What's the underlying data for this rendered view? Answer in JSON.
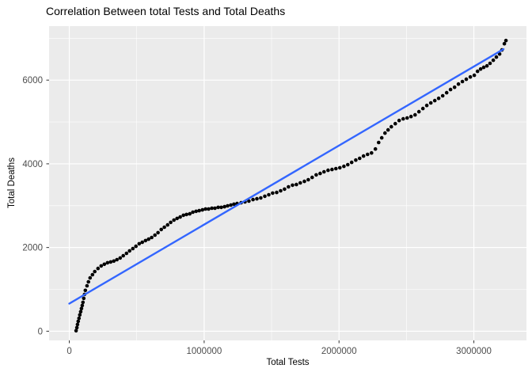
{
  "chart_data": {
    "type": "scatter",
    "title": "Correlation Between total Tests and Total Deaths",
    "xlabel": "Total Tests",
    "ylabel": "Total Deaths",
    "legend_position": "none",
    "grid": true,
    "x_ticks": [
      0,
      1000000,
      2000000,
      3000000
    ],
    "x_tick_labels": [
      "0",
      "1000000",
      "2000000",
      "3000000"
    ],
    "x_minor_ticks": [
      500000,
      1500000,
      2500000
    ],
    "y_ticks": [
      0,
      2000,
      4000,
      6000
    ],
    "y_tick_labels": [
      "0",
      "2000",
      "4000",
      "6000"
    ],
    "y_minor_ticks": [
      1000,
      3000,
      5000,
      7000
    ],
    "xlim": [
      -150000,
      3390000
    ],
    "ylim": [
      -220,
      7290
    ],
    "trend_line": {
      "type": "linear",
      "x1": 0,
      "y1": 660,
      "x2": 3220000,
      "y2": 6740
    },
    "colors": {
      "panel_background": "#EBEBEB",
      "gridline": "#FFFFFF",
      "point": "#000000",
      "trend": "#3366FF",
      "tick_text": "#4D4D4D",
      "tick_mark": "#333333",
      "title_text": "#000000",
      "axis_title_text": "#000000"
    },
    "points": [
      [
        50000,
        10
      ],
      [
        56000,
        85
      ],
      [
        61000,
        160
      ],
      [
        66000,
        235
      ],
      [
        72000,
        310
      ],
      [
        78000,
        390
      ],
      [
        84000,
        465
      ],
      [
        90000,
        540
      ],
      [
        96000,
        615
      ],
      [
        101000,
        690
      ],
      [
        107000,
        785
      ],
      [
        113000,
        880
      ],
      [
        119000,
        975
      ],
      [
        131000,
        1085
      ],
      [
        142000,
        1180
      ],
      [
        154000,
        1275
      ],
      [
        172000,
        1350
      ],
      [
        189000,
        1425
      ],
      [
        213000,
        1500
      ],
      [
        236000,
        1560
      ],
      [
        260000,
        1600
      ],
      [
        283000,
        1635
      ],
      [
        307000,
        1655
      ],
      [
        330000,
        1675
      ],
      [
        353000,
        1710
      ],
      [
        377000,
        1750
      ],
      [
        400000,
        1805
      ],
      [
        424000,
        1860
      ],
      [
        447000,
        1920
      ],
      [
        471000,
        1975
      ],
      [
        494000,
        2030
      ],
      [
        518000,
        2090
      ],
      [
        541000,
        2125
      ],
      [
        565000,
        2165
      ],
      [
        588000,
        2200
      ],
      [
        611000,
        2240
      ],
      [
        635000,
        2295
      ],
      [
        658000,
        2355
      ],
      [
        682000,
        2430
      ],
      [
        705000,
        2485
      ],
      [
        729000,
        2540
      ],
      [
        752000,
        2600
      ],
      [
        776000,
        2655
      ],
      [
        799000,
        2695
      ],
      [
        822000,
        2730
      ],
      [
        846000,
        2770
      ],
      [
        869000,
        2790
      ],
      [
        893000,
        2805
      ],
      [
        916000,
        2845
      ],
      [
        940000,
        2865
      ],
      [
        963000,
        2880
      ],
      [
        987000,
        2900
      ],
      [
        1010000,
        2920
      ],
      [
        1033000,
        2920
      ],
      [
        1057000,
        2940
      ],
      [
        1080000,
        2940
      ],
      [
        1104000,
        2960
      ],
      [
        1127000,
        2960
      ],
      [
        1151000,
        2975
      ],
      [
        1174000,
        2995
      ],
      [
        1198000,
        3015
      ],
      [
        1221000,
        3035
      ],
      [
        1244000,
        3050
      ],
      [
        1274000,
        3070
      ],
      [
        1303000,
        3090
      ],
      [
        1332000,
        3110
      ],
      [
        1362000,
        3145
      ],
      [
        1391000,
        3165
      ],
      [
        1420000,
        3185
      ],
      [
        1450000,
        3225
      ],
      [
        1479000,
        3260
      ],
      [
        1508000,
        3300
      ],
      [
        1538000,
        3315
      ],
      [
        1567000,
        3355
      ],
      [
        1596000,
        3395
      ],
      [
        1625000,
        3450
      ],
      [
        1655000,
        3490
      ],
      [
        1684000,
        3505
      ],
      [
        1713000,
        3545
      ],
      [
        1743000,
        3580
      ],
      [
        1772000,
        3620
      ],
      [
        1801000,
        3675
      ],
      [
        1831000,
        3735
      ],
      [
        1860000,
        3770
      ],
      [
        1889000,
        3810
      ],
      [
        1919000,
        3845
      ],
      [
        1948000,
        3865
      ],
      [
        1977000,
        3885
      ],
      [
        2006000,
        3905
      ],
      [
        2036000,
        3940
      ],
      [
        2065000,
        3980
      ],
      [
        2094000,
        4035
      ],
      [
        2124000,
        4090
      ],
      [
        2153000,
        4130
      ],
      [
        2182000,
        4185
      ],
      [
        2212000,
        4225
      ],
      [
        2241000,
        4260
      ],
      [
        2270000,
        4355
      ],
      [
        2294000,
        4510
      ],
      [
        2317000,
        4620
      ],
      [
        2341000,
        4735
      ],
      [
        2364000,
        4810
      ],
      [
        2388000,
        4885
      ],
      [
        2417000,
        4960
      ],
      [
        2446000,
        5035
      ],
      [
        2476000,
        5075
      ],
      [
        2505000,
        5095
      ],
      [
        2534000,
        5130
      ],
      [
        2564000,
        5170
      ],
      [
        2593000,
        5245
      ],
      [
        2622000,
        5320
      ],
      [
        2651000,
        5395
      ],
      [
        2681000,
        5455
      ],
      [
        2710000,
        5510
      ],
      [
        2739000,
        5565
      ],
      [
        2769000,
        5625
      ],
      [
        2798000,
        5700
      ],
      [
        2827000,
        5775
      ],
      [
        2857000,
        5830
      ],
      [
        2886000,
        5905
      ],
      [
        2915000,
        5965
      ],
      [
        2944000,
        6020
      ],
      [
        2974000,
        6075
      ],
      [
        3003000,
        6115
      ],
      [
        3027000,
        6210
      ],
      [
        3050000,
        6265
      ],
      [
        3073000,
        6305
      ],
      [
        3097000,
        6340
      ],
      [
        3120000,
        6400
      ],
      [
        3144000,
        6475
      ],
      [
        3167000,
        6550
      ],
      [
        3191000,
        6625
      ],
      [
        3208000,
        6720
      ],
      [
        3226000,
        6870
      ],
      [
        3238000,
        6945
      ]
    ]
  }
}
